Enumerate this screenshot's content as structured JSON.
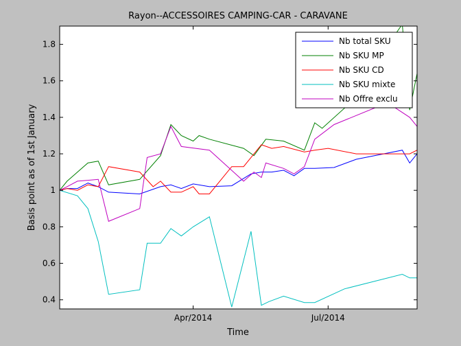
{
  "chart_data": {
    "type": "line",
    "title": "Rayon--ACCESSOIRES CAMPING-CAR - CARAVANE",
    "xlabel": "Time",
    "ylabel": "Basis point as of 1st January",
    "x_tick_labels": [
      {
        "label": "Apr/2014",
        "date": "2014-04-01"
      },
      {
        "label": "Jul/2014",
        "date": "2014-07-01"
      }
    ],
    "x_range": [
      "2014-01-01",
      "2014-08-30"
    ],
    "y_ticks": [
      "0.4",
      "0.6",
      "0.8",
      "1",
      "1.2",
      "1.4",
      "1.6",
      "1.8"
    ],
    "ylim": [
      0.35,
      1.9
    ],
    "grid": false,
    "legend_position": "top-right",
    "series": [
      {
        "name": "Nb total SKU",
        "color": "#0000ff",
        "points": [
          [
            "2014-01-01",
            1.0
          ],
          [
            "2014-01-06",
            1.01
          ],
          [
            "2014-01-13",
            1.01
          ],
          [
            "2014-01-20",
            1.04
          ],
          [
            "2014-01-27",
            1.02
          ],
          [
            "2014-02-03",
            0.99
          ],
          [
            "2014-02-24",
            0.98
          ],
          [
            "2014-03-10",
            1.02
          ],
          [
            "2014-03-17",
            1.03
          ],
          [
            "2014-03-24",
            1.01
          ],
          [
            "2014-04-01",
            1.035
          ],
          [
            "2014-04-12",
            1.02
          ],
          [
            "2014-04-27",
            1.025
          ],
          [
            "2014-05-10",
            1.09
          ],
          [
            "2014-05-17",
            1.1
          ],
          [
            "2014-05-24",
            1.1
          ],
          [
            "2014-06-01",
            1.11
          ],
          [
            "2014-06-08",
            1.08
          ],
          [
            "2014-06-15",
            1.12
          ],
          [
            "2014-06-22",
            1.12
          ],
          [
            "2014-07-05",
            1.125
          ],
          [
            "2014-07-20",
            1.17
          ],
          [
            "2014-08-20",
            1.22
          ],
          [
            "2014-08-25",
            1.15
          ],
          [
            "2014-08-30",
            1.2
          ]
        ]
      },
      {
        "name": "Nb SKU MP",
        "color": "#008000",
        "points": [
          [
            "2014-01-01",
            1.0
          ],
          [
            "2014-01-06",
            1.05
          ],
          [
            "2014-01-20",
            1.15
          ],
          [
            "2014-01-27",
            1.16
          ],
          [
            "2014-02-03",
            1.03
          ],
          [
            "2014-02-24",
            1.06
          ],
          [
            "2014-03-10",
            1.19
          ],
          [
            "2014-03-17",
            1.36
          ],
          [
            "2014-03-24",
            1.3
          ],
          [
            "2014-04-01",
            1.27
          ],
          [
            "2014-04-05",
            1.3
          ],
          [
            "2014-04-12",
            1.28
          ],
          [
            "2014-05-05",
            1.23
          ],
          [
            "2014-05-12",
            1.19
          ],
          [
            "2014-05-20",
            1.28
          ],
          [
            "2014-06-01",
            1.27
          ],
          [
            "2014-06-15",
            1.22
          ],
          [
            "2014-06-22",
            1.37
          ],
          [
            "2014-06-27",
            1.34
          ],
          [
            "2014-07-12",
            1.45
          ],
          [
            "2014-08-20",
            1.91
          ],
          [
            "2014-08-25",
            1.44
          ],
          [
            "2014-08-30",
            1.64
          ]
        ]
      },
      {
        "name": "Nb SKU CD",
        "color": "#ff0000",
        "points": [
          [
            "2014-01-01",
            1.0
          ],
          [
            "2014-01-06",
            1.01
          ],
          [
            "2014-01-13",
            1.0
          ],
          [
            "2014-01-20",
            1.03
          ],
          [
            "2014-01-27",
            1.02
          ],
          [
            "2014-02-03",
            1.13
          ],
          [
            "2014-02-24",
            1.1
          ],
          [
            "2014-03-05",
            1.02
          ],
          [
            "2014-03-10",
            1.05
          ],
          [
            "2014-03-17",
            0.99
          ],
          [
            "2014-03-24",
            0.99
          ],
          [
            "2014-04-01",
            1.02
          ],
          [
            "2014-04-05",
            0.98
          ],
          [
            "2014-04-12",
            0.98
          ],
          [
            "2014-04-27",
            1.13
          ],
          [
            "2014-05-05",
            1.13
          ],
          [
            "2014-05-17",
            1.25
          ],
          [
            "2014-05-24",
            1.23
          ],
          [
            "2014-06-01",
            1.24
          ],
          [
            "2014-06-15",
            1.21
          ],
          [
            "2014-06-22",
            1.22
          ],
          [
            "2014-07-01",
            1.23
          ],
          [
            "2014-07-20",
            1.2
          ],
          [
            "2014-08-25",
            1.2
          ],
          [
            "2014-08-30",
            1.22
          ]
        ]
      },
      {
        "name": "Nb SKU mixte",
        "color": "#00bfbf",
        "points": [
          [
            "2014-01-01",
            1.0
          ],
          [
            "2014-01-13",
            0.97
          ],
          [
            "2014-01-20",
            0.9
          ],
          [
            "2014-01-27",
            0.72
          ],
          [
            "2014-02-03",
            0.43
          ],
          [
            "2014-02-24",
            0.455
          ],
          [
            "2014-03-01",
            0.71
          ],
          [
            "2014-03-10",
            0.71
          ],
          [
            "2014-03-17",
            0.79
          ],
          [
            "2014-03-24",
            0.75
          ],
          [
            "2014-04-01",
            0.8
          ],
          [
            "2014-04-12",
            0.855
          ],
          [
            "2014-04-27",
            0.36
          ],
          [
            "2014-05-10",
            0.775
          ],
          [
            "2014-05-17",
            0.37
          ],
          [
            "2014-05-22",
            0.39
          ],
          [
            "2014-06-01",
            0.42
          ],
          [
            "2014-06-15",
            0.385
          ],
          [
            "2014-06-22",
            0.385
          ],
          [
            "2014-07-12",
            0.46
          ],
          [
            "2014-08-20",
            0.54
          ],
          [
            "2014-08-25",
            0.52
          ],
          [
            "2014-08-30",
            0.52
          ]
        ]
      },
      {
        "name": "Nb Offre exclu",
        "color": "#bf00bf",
        "points": [
          [
            "2014-01-01",
            1.0
          ],
          [
            "2014-01-06",
            1.02
          ],
          [
            "2014-01-13",
            1.05
          ],
          [
            "2014-01-27",
            1.06
          ],
          [
            "2014-02-03",
            0.83
          ],
          [
            "2014-02-24",
            0.9
          ],
          [
            "2014-03-01",
            1.18
          ],
          [
            "2014-03-10",
            1.2
          ],
          [
            "2014-03-17",
            1.35
          ],
          [
            "2014-03-24",
            1.24
          ],
          [
            "2014-04-12",
            1.22
          ],
          [
            "2014-05-05",
            1.05
          ],
          [
            "2014-05-12",
            1.1
          ],
          [
            "2014-05-17",
            1.07
          ],
          [
            "2014-05-20",
            1.15
          ],
          [
            "2014-06-01",
            1.12
          ],
          [
            "2014-06-08",
            1.09
          ],
          [
            "2014-06-15",
            1.13
          ],
          [
            "2014-06-22",
            1.28
          ],
          [
            "2014-07-05",
            1.36
          ],
          [
            "2014-08-10",
            1.48
          ],
          [
            "2014-08-25",
            1.4
          ],
          [
            "2014-08-30",
            1.35
          ]
        ]
      }
    ]
  }
}
